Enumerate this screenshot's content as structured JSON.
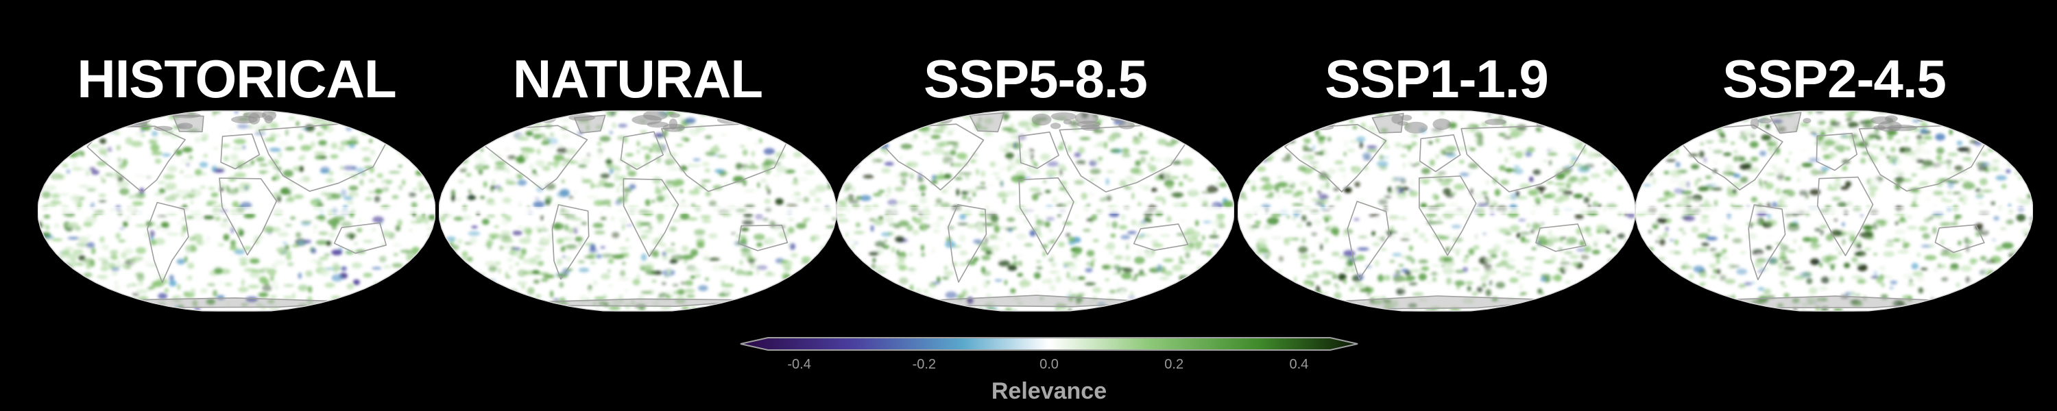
{
  "figure": {
    "background": "#000000",
    "panels": [
      {
        "id": "historical",
        "title": "HISTORICAL",
        "seed": 11,
        "intensity": 0.85
      },
      {
        "id": "natural",
        "title": "NATURAL",
        "seed": 23,
        "intensity": 0.95
      },
      {
        "id": "ssp585",
        "title": "SSP5-8.5",
        "seed": 37,
        "intensity": 1.0
      },
      {
        "id": "ssp119",
        "title": "SSP1-1.9",
        "seed": 51,
        "intensity": 1.05
      },
      {
        "id": "ssp245",
        "title": "SSP2-4.5",
        "seed": 67,
        "intensity": 1.1
      }
    ],
    "colorbar": {
      "label": "Relevance",
      "ticks": [
        "-0.4",
        "-0.2",
        "0.0",
        "0.2",
        "0.4"
      ],
      "tick_values": [
        -0.4,
        -0.2,
        0.0,
        0.2,
        0.4
      ],
      "range": [
        -0.45,
        0.45
      ],
      "extend": "both",
      "colors": {
        "negative_extreme": "#2a0845",
        "negative_mid": "#4a3e9e",
        "negative_low": "#5aa8cc",
        "neutral": "#ffffff",
        "positive_low": "#8fc97a",
        "positive_mid": "#3f8a2a",
        "positive_extreme": "#0c1a05"
      }
    },
    "coastline_color": "#9e9e9e",
    "land_ice_color": "#8c8c8c"
  }
}
